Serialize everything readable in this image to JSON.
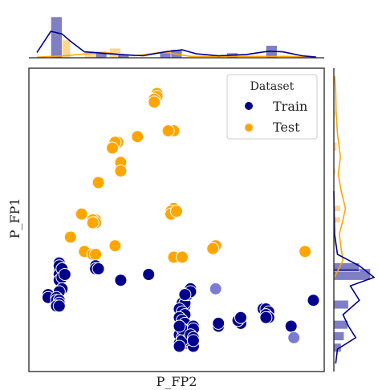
{
  "chart_data": {
    "type": "scatter",
    "xlabel": "P_FP2",
    "ylabel": "P_FP1",
    "xlim": [
      0,
      100
    ],
    "ylim": [
      0,
      100
    ],
    "ticks_shown": false,
    "grid": false,
    "legend": {
      "title": "Dataset",
      "placement": "top-right"
    },
    "marginals": {
      "top": "histogram + kde",
      "right": "histogram + kde"
    },
    "series": [
      {
        "name": "Train",
        "color": "#00008b",
        "points": [
          [
            8,
            32
          ],
          [
            8,
            33
          ],
          [
            8,
            34
          ],
          [
            8,
            35
          ],
          [
            8,
            34
          ],
          [
            9,
            31
          ],
          [
            8,
            31
          ],
          [
            9,
            33
          ],
          [
            8,
            29
          ],
          [
            9,
            30
          ],
          [
            9,
            26
          ],
          [
            8,
            25
          ],
          [
            10,
            31
          ],
          [
            4,
            24
          ],
          [
            4,
            23
          ],
          [
            7,
            23
          ],
          [
            7,
            22
          ],
          [
            8,
            22
          ],
          [
            8,
            21
          ],
          [
            7,
            20
          ],
          [
            8,
            20
          ],
          [
            21,
            34
          ],
          [
            21,
            33
          ],
          [
            22,
            33
          ],
          [
            30,
            29
          ],
          [
            40,
            31
          ],
          [
            53,
            20
          ],
          [
            52,
            21
          ],
          [
            53,
            21
          ],
          [
            51,
            19
          ],
          [
            52,
            18
          ],
          [
            53,
            17
          ],
          [
            51,
            16
          ],
          [
            52,
            15
          ],
          [
            53,
            14
          ],
          [
            51,
            13
          ],
          [
            52,
            12
          ],
          [
            53,
            11
          ],
          [
            51,
            10
          ],
          [
            52,
            9
          ],
          [
            53,
            8
          ],
          [
            51,
            7
          ],
          [
            52,
            7
          ],
          [
            53,
            7
          ],
          [
            54,
            7
          ],
          [
            55,
            7
          ],
          [
            56,
            6
          ],
          [
            54,
            9
          ],
          [
            53,
            8
          ],
          [
            52,
            8
          ],
          [
            51,
            6
          ],
          [
            54,
            11
          ],
          [
            55,
            12
          ],
          [
            52,
            12
          ],
          [
            51,
            13
          ],
          [
            56,
            13
          ],
          [
            56,
            12
          ],
          [
            55,
            10
          ],
          [
            56,
            9
          ],
          [
            56,
            8
          ],
          [
            55,
            26
          ],
          [
            54,
            24
          ],
          [
            55,
            25
          ],
          [
            53,
            24
          ],
          [
            65,
            14
          ],
          [
            65,
            13
          ],
          [
            65,
            14
          ],
          [
            73,
            14
          ],
          [
            72,
            15
          ],
          [
            73,
            16
          ],
          [
            82,
            18
          ],
          [
            81,
            19
          ],
          [
            82,
            19
          ],
          [
            83,
            18
          ],
          [
            82,
            17
          ],
          [
            82,
            17
          ],
          [
            83,
            16
          ],
          [
            82,
            16
          ],
          [
            91,
            13
          ],
          [
            99,
            22
          ]
        ]
      },
      {
        "name": "Test",
        "color": "#ffa500",
        "points": [
          [
            43,
            94
          ],
          [
            43,
            93
          ],
          [
            42,
            92
          ],
          [
            42,
            91
          ],
          [
            49,
            81
          ],
          [
            47,
            81
          ],
          [
            36,
            79
          ],
          [
            28,
            76
          ],
          [
            29,
            77
          ],
          [
            28,
            77
          ],
          [
            27,
            75
          ],
          [
            30,
            68
          ],
          [
            30,
            69
          ],
          [
            30,
            70
          ],
          [
            30,
            67
          ],
          [
            22,
            63
          ],
          [
            16,
            52
          ],
          [
            21,
            50
          ],
          [
            20,
            50
          ],
          [
            21,
            49
          ],
          [
            20,
            49
          ],
          [
            12,
            44
          ],
          [
            17,
            39
          ],
          [
            28,
            41
          ],
          [
            20,
            38
          ],
          [
            21,
            38
          ],
          [
            49,
            54
          ],
          [
            48,
            53
          ],
          [
            48,
            52
          ],
          [
            50,
            53
          ],
          [
            49,
            37
          ],
          [
            52,
            37
          ],
          [
            64,
            41
          ],
          [
            63,
            40
          ],
          [
            96,
            39
          ]
        ]
      },
      {
        "name": "",
        "color": "#7b7bd2",
        "points": [
          [
            64,
            26
          ],
          [
            92,
            9
          ]
        ]
      }
    ],
    "top_marginal": {
      "bins": [
        [
          5,
          9,
          60
        ],
        [
          9,
          12,
          26
        ],
        [
          17,
          21,
          10
        ],
        [
          21,
          25,
          9
        ],
        [
          26,
          30,
          14
        ],
        [
          29,
          33,
          4
        ],
        [
          44,
          48,
          8
        ],
        [
          48,
          52,
          12
        ],
        [
          68,
          72,
          7
        ],
        [
          82,
          86,
          18
        ]
      ],
      "train_kde": [
        [
          0,
          8
        ],
        [
          5,
          40
        ],
        [
          9,
          36
        ],
        [
          12,
          25
        ],
        [
          17,
          9
        ],
        [
          23,
          7
        ],
        [
          30,
          5
        ],
        [
          38,
          3
        ],
        [
          46,
          9
        ],
        [
          52,
          12
        ],
        [
          57,
          6
        ],
        [
          65,
          3
        ],
        [
          75,
          5
        ],
        [
          83,
          10
        ],
        [
          88,
          9
        ],
        [
          95,
          3
        ],
        [
          100,
          1
        ]
      ],
      "test_kde": [
        [
          0,
          1
        ],
        [
          10,
          3
        ],
        [
          18,
          6
        ],
        [
          24,
          8
        ],
        [
          28,
          6
        ],
        [
          35,
          3
        ],
        [
          44,
          8
        ],
        [
          48,
          7
        ],
        [
          55,
          2
        ],
        [
          70,
          2
        ],
        [
          90,
          2
        ],
        [
          100,
          1
        ]
      ]
    },
    "right_marginal": {
      "bins": [
        [
          29,
          33,
          100
        ],
        [
          32,
          35,
          70
        ],
        [
          19,
          22,
          40
        ],
        [
          12,
          15,
          38
        ],
        [
          8,
          11,
          28
        ],
        [
          4,
          7,
          20
        ],
        [
          53,
          55,
          18
        ],
        [
          49,
          51,
          18
        ],
        [
          74,
          77,
          8
        ],
        [
          41,
          44,
          6
        ],
        [
          66,
          68,
          5
        ],
        [
          86,
          88,
          4
        ]
      ],
      "train_kde": [
        [
          0,
          5
        ],
        [
          5,
          10
        ],
        [
          9,
          60
        ],
        [
          13,
          40
        ],
        [
          17,
          25
        ],
        [
          22,
          70
        ],
        [
          27,
          45
        ],
        [
          30,
          110
        ],
        [
          34,
          70
        ],
        [
          38,
          10
        ],
        [
          45,
          2
        ],
        [
          60,
          0
        ]
      ],
      "test_kde": [
        [
          30,
          2
        ],
        [
          36,
          25
        ],
        [
          40,
          20
        ],
        [
          45,
          15
        ],
        [
          50,
          25
        ],
        [
          54,
          32
        ],
        [
          60,
          20
        ],
        [
          66,
          12
        ],
        [
          72,
          18
        ],
        [
          80,
          10
        ],
        [
          88,
          6
        ],
        [
          95,
          5
        ],
        [
          100,
          2
        ]
      ]
    }
  }
}
